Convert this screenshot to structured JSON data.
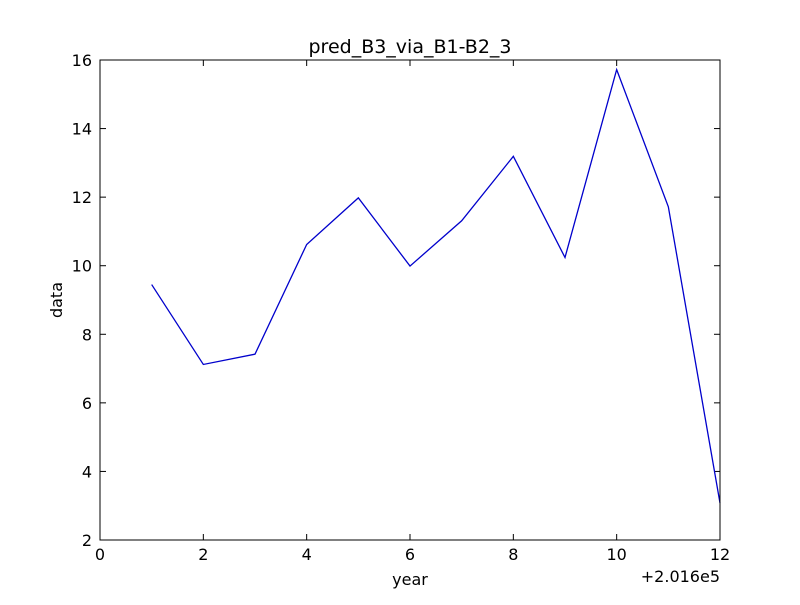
{
  "chart_data": {
    "type": "line",
    "title": "pred_B3_via_B1-B2_3",
    "xlabel": "year",
    "ylabel": "data",
    "x_offset_label": "+2.016e5",
    "xlim": [
      0,
      12
    ],
    "ylim": [
      2,
      16
    ],
    "x_ticks": [
      0,
      2,
      4,
      6,
      8,
      10,
      12
    ],
    "y_ticks": [
      2,
      4,
      6,
      8,
      10,
      12,
      14,
      16
    ],
    "x_tick_labels": [
      "0",
      "2",
      "4",
      "6",
      "8",
      "10",
      "12"
    ],
    "y_tick_labels": [
      "2",
      "4",
      "6",
      "8",
      "10",
      "12",
      "14",
      "16"
    ],
    "grid": false,
    "line_color": "#0000cc",
    "series": [
      {
        "x": [
          1,
          2,
          3,
          4,
          5,
          6,
          7,
          8,
          9,
          10,
          11,
          12
        ],
        "values": [
          9.45,
          7.12,
          7.42,
          10.62,
          11.98,
          9.99,
          11.31,
          13.19,
          10.24,
          15.72,
          11.72,
          3.08
        ]
      }
    ]
  }
}
